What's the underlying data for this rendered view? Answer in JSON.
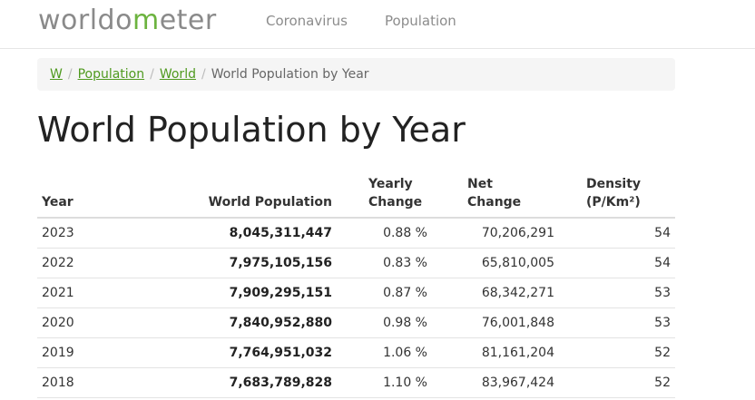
{
  "header": {
    "logo_prefix": "worldo",
    "logo_o": "m",
    "logo_suffix": "eter",
    "nav": [
      "Coronavirus",
      "Population"
    ]
  },
  "breadcrumb": {
    "items": [
      "W",
      "Population",
      "World"
    ],
    "separator": "/",
    "current": "World Population by Year"
  },
  "page": {
    "title": "World Population by Year"
  },
  "table": {
    "headers": {
      "year": "Year",
      "population": "World Population",
      "yearly_line1": "Yearly",
      "yearly_line2": "Change",
      "net_line1": "Net",
      "net_line2": "Change",
      "density_line1": "Density",
      "density_line2": "(P/Km²)"
    },
    "rows": [
      {
        "year": "2023",
        "population": "8,045,311,447",
        "yearly_change": "0.88 %",
        "net_change": "70,206,291",
        "density": "54"
      },
      {
        "year": "2022",
        "population": "7,975,105,156",
        "yearly_change": "0.83 %",
        "net_change": "65,810,005",
        "density": "54"
      },
      {
        "year": "2021",
        "population": "7,909,295,151",
        "yearly_change": "0.87 %",
        "net_change": "68,342,271",
        "density": "53"
      },
      {
        "year": "2020",
        "population": "7,840,952,880",
        "yearly_change": "0.98 %",
        "net_change": "76,001,848",
        "density": "53"
      },
      {
        "year": "2019",
        "population": "7,764,951,032",
        "yearly_change": "1.06 %",
        "net_change": "81,161,204",
        "density": "52"
      },
      {
        "year": "2018",
        "population": "7,683,789,828",
        "yearly_change": "1.10 %",
        "net_change": "83,967,424",
        "density": "52"
      }
    ]
  },
  "colors": {
    "logo_gray": "#8a8a8a",
    "logo_green": "#6cb33f",
    "link_green": "#4f9a1f"
  }
}
